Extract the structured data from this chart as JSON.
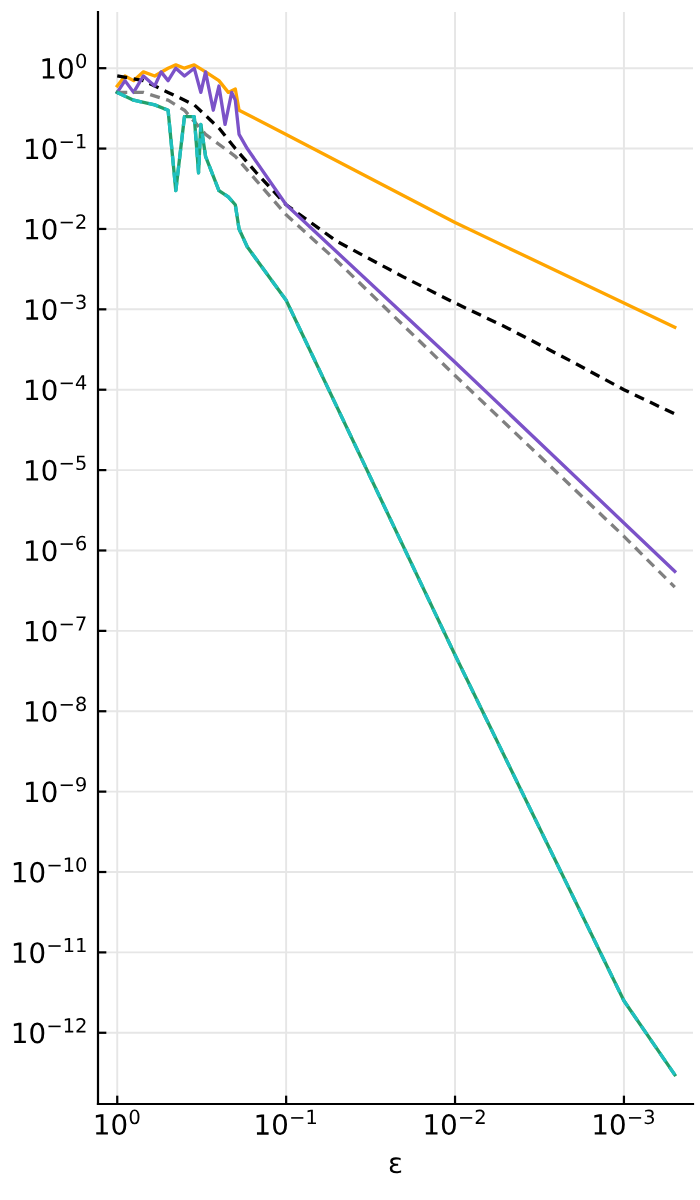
{
  "chart_data": {
    "type": "line",
    "xlabel": "ε",
    "log": "xy",
    "grid": true,
    "xlim": [
      1.3,
      0.00039
    ],
    "ylim": [
      1.3e-13,
      5
    ],
    "xticks": [
      {
        "value": 1,
        "label": "10$^{0}$"
      },
      {
        "value": 0.1,
        "label": "10$^{−1}$"
      },
      {
        "value": 0.01,
        "label": "10$^{−2}$"
      },
      {
        "value": 0.001,
        "label": "10$^{−3}$"
      }
    ],
    "yticks": [
      {
        "value": 1,
        "label": "10$^{0}$"
      },
      {
        "value": 0.1,
        "label": "10$^{−1}$"
      },
      {
        "value": 0.01,
        "label": "10$^{−2}$"
      },
      {
        "value": 0.001,
        "label": "10$^{−3}$"
      },
      {
        "value": 0.0001,
        "label": "10$^{−4}$"
      },
      {
        "value": 1e-05,
        "label": "10$^{−5}$"
      },
      {
        "value": 1e-06,
        "label": "10$^{−6}$"
      },
      {
        "value": 1e-07,
        "label": "10$^{−7}$"
      },
      {
        "value": 1e-08,
        "label": "10$^{−8}$"
      },
      {
        "value": 1e-09,
        "label": "10$^{−9}$"
      },
      {
        "value": 1e-10,
        "label": "10$^{−10}$"
      },
      {
        "value": 1e-11,
        "label": "10$^{−11}$"
      },
      {
        "value": 1e-12,
        "label": "10$^{−12}$"
      }
    ],
    "series": [
      {
        "color": "#ffa500",
        "line_style": "solid",
        "x": [
          1,
          0.9,
          0.8,
          0.7,
          0.6,
          0.5,
          0.45,
          0.4,
          0.35,
          0.3,
          0.25,
          0.22,
          0.2,
          0.19,
          0.1,
          0.01,
          0.001,
          0.0005
        ],
        "values": [
          0.6,
          0.8,
          0.7,
          0.9,
          0.8,
          1.0,
          1.1,
          1.0,
          1.1,
          0.9,
          0.7,
          0.5,
          0.55,
          0.3,
          0.15,
          0.012,
          0.0012,
          0.0006
        ]
      },
      {
        "color": "#000000",
        "line_style": "dashed",
        "x": [
          1,
          0.7,
          0.5,
          0.35,
          0.25,
          0.2,
          0.15,
          0.1,
          0.05,
          0.02,
          0.01,
          0.005,
          0.002,
          0.001,
          0.0005
        ],
        "values": [
          0.8,
          0.7,
          0.5,
          0.35,
          0.18,
          0.1,
          0.05,
          0.02,
          0.007,
          0.0025,
          0.0012,
          0.0006,
          0.00022,
          0.0001,
          5e-05
        ]
      },
      {
        "color": "#7b52c8",
        "line_style": "solid",
        "x": [
          1,
          0.9,
          0.8,
          0.7,
          0.6,
          0.55,
          0.5,
          0.45,
          0.4,
          0.35,
          0.32,
          0.3,
          0.27,
          0.25,
          0.23,
          0.21,
          0.2,
          0.19,
          0.17,
          0.1,
          0.01,
          0.001,
          0.0005
        ],
        "values": [
          0.5,
          0.7,
          0.5,
          0.8,
          0.6,
          0.9,
          0.7,
          1.0,
          0.8,
          1.0,
          0.5,
          0.9,
          0.3,
          0.6,
          0.2,
          0.5,
          0.4,
          0.15,
          0.1,
          0.02,
          0.00022,
          2.2e-06,
          5.5e-07
        ]
      },
      {
        "color": "#808080",
        "line_style": "dashed",
        "x": [
          1,
          0.7,
          0.5,
          0.4,
          0.3,
          0.2,
          0.15,
          0.1,
          0.05,
          0.01,
          0.001,
          0.0005
        ],
        "values": [
          0.5,
          0.5,
          0.4,
          0.3,
          0.15,
          0.08,
          0.04,
          0.015,
          0.004,
          0.00015,
          1.5e-06,
          3.5e-07
        ]
      },
      {
        "color": "#22a06b",
        "line_style": "solid",
        "x": [
          1,
          0.8,
          0.6,
          0.5,
          0.45,
          0.4,
          0.35,
          0.33,
          0.32,
          0.3,
          0.25,
          0.22,
          0.2,
          0.19,
          0.17,
          0.1,
          0.01,
          0.001,
          0.0005
        ],
        "values": [
          0.5,
          0.4,
          0.35,
          0.3,
          0.03,
          0.25,
          0.25,
          0.05,
          0.2,
          0.08,
          0.03,
          0.025,
          0.02,
          0.01,
          0.006,
          0.0013,
          5e-08,
          2.5e-12,
          3e-13
        ]
      },
      {
        "color": "#20c0c0",
        "line_style": "dashed",
        "x": [
          1,
          0.8,
          0.6,
          0.5,
          0.45,
          0.4,
          0.35,
          0.33,
          0.32,
          0.3,
          0.25,
          0.22,
          0.2,
          0.19,
          0.17,
          0.1,
          0.01,
          0.001,
          0.0005
        ],
        "values": [
          0.5,
          0.4,
          0.35,
          0.3,
          0.03,
          0.25,
          0.25,
          0.05,
          0.2,
          0.08,
          0.03,
          0.025,
          0.02,
          0.01,
          0.006,
          0.0013,
          5e-08,
          2.5e-12,
          3e-13
        ]
      }
    ]
  }
}
